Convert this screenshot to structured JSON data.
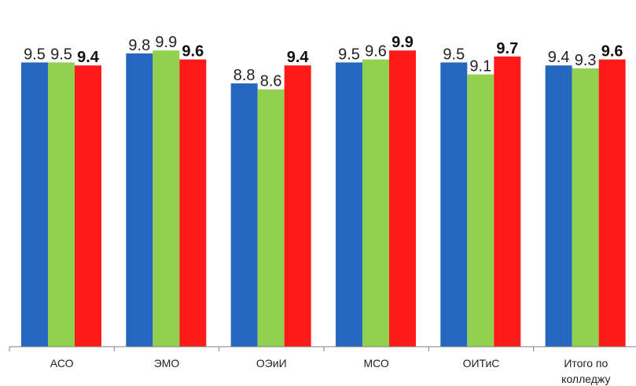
{
  "chart_data": {
    "type": "bar",
    "title": "",
    "xlabel": "",
    "ylabel": "",
    "categories": [
      [
        "АСО"
      ],
      [
        "ЭМО"
      ],
      [
        "ОЭиИ"
      ],
      [
        "МСО"
      ],
      [
        "ОИТиС"
      ],
      [
        "Итого по",
        "колледжу"
      ]
    ],
    "series": [
      {
        "color": "#2566BE",
        "values": [
          9.5,
          9.8,
          8.8,
          9.5,
          9.5,
          9.4
        ]
      },
      {
        "color": "#92D050",
        "values": [
          9.5,
          9.9,
          8.6,
          9.6,
          9.1,
          9.3
        ]
      },
      {
        "color": "#FF1A1A",
        "values": [
          9.4,
          9.6,
          9.4,
          9.9,
          9.7,
          9.6
        ],
        "bold_labels": true
      }
    ],
    "ylim": [
      0,
      10
    ],
    "grid": false,
    "legend": "none"
  }
}
